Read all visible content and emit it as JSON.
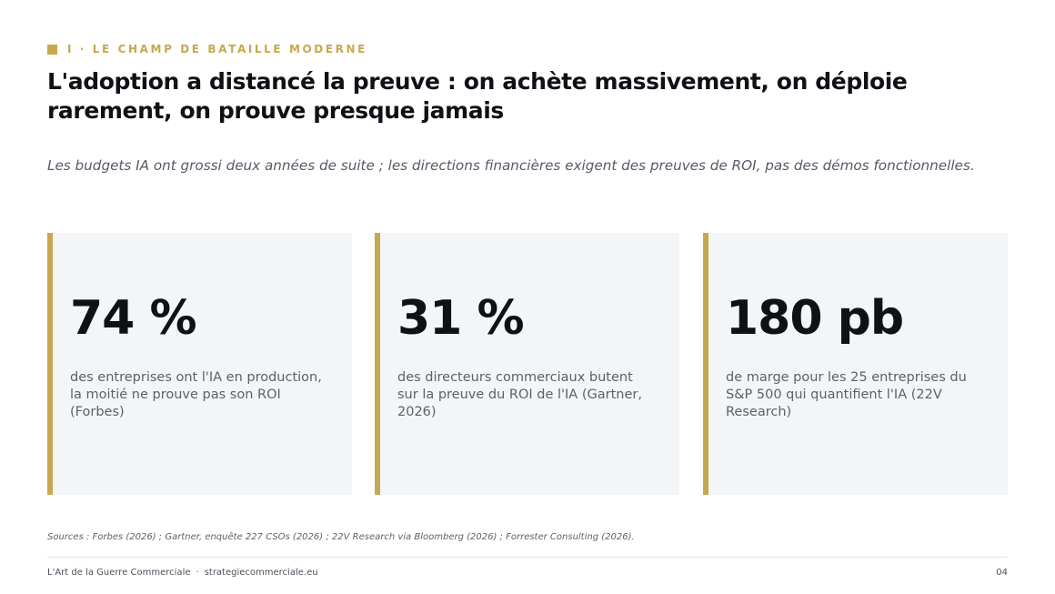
{
  "eyebrow": {
    "text": "I · LE CHAMP DE BATAILLE MODERNE",
    "accent_color": "#c8a84f"
  },
  "title": "L'adoption a distancé la preuve : on achète massivement, on déploie rarement, on prouve presque jamais",
  "subtitle": "Les budgets IA ont grossi deux années de suite ; les directions financières exigent des preuves de ROI, pas des démos fonctionnelles.",
  "stats": [
    {
      "value": "74 %",
      "description": "des entreprises ont l'IA en production, la moitié ne prouve pas son ROI (Forbes)"
    },
    {
      "value": "31 %",
      "description": "des directeurs commerciaux butent sur la preuve du ROI de l'IA (Gartner, 2026)"
    },
    {
      "value": "180 pb",
      "description": "de marge pour les 25 entreprises du S&P 500 qui quantifient l'IA (22V Research)"
    }
  ],
  "sources": "Sources : Forbes (2026) ; Gartner, enquête 227 CSOs (2026) ; 22V Research via Bloomberg (2026) ; Forrester Consulting (2026).",
  "footer": {
    "brand": "L'Art de la Guerre Commerciale",
    "separator": "·",
    "site": "strategiecommerciale.eu",
    "page_number": "04"
  }
}
